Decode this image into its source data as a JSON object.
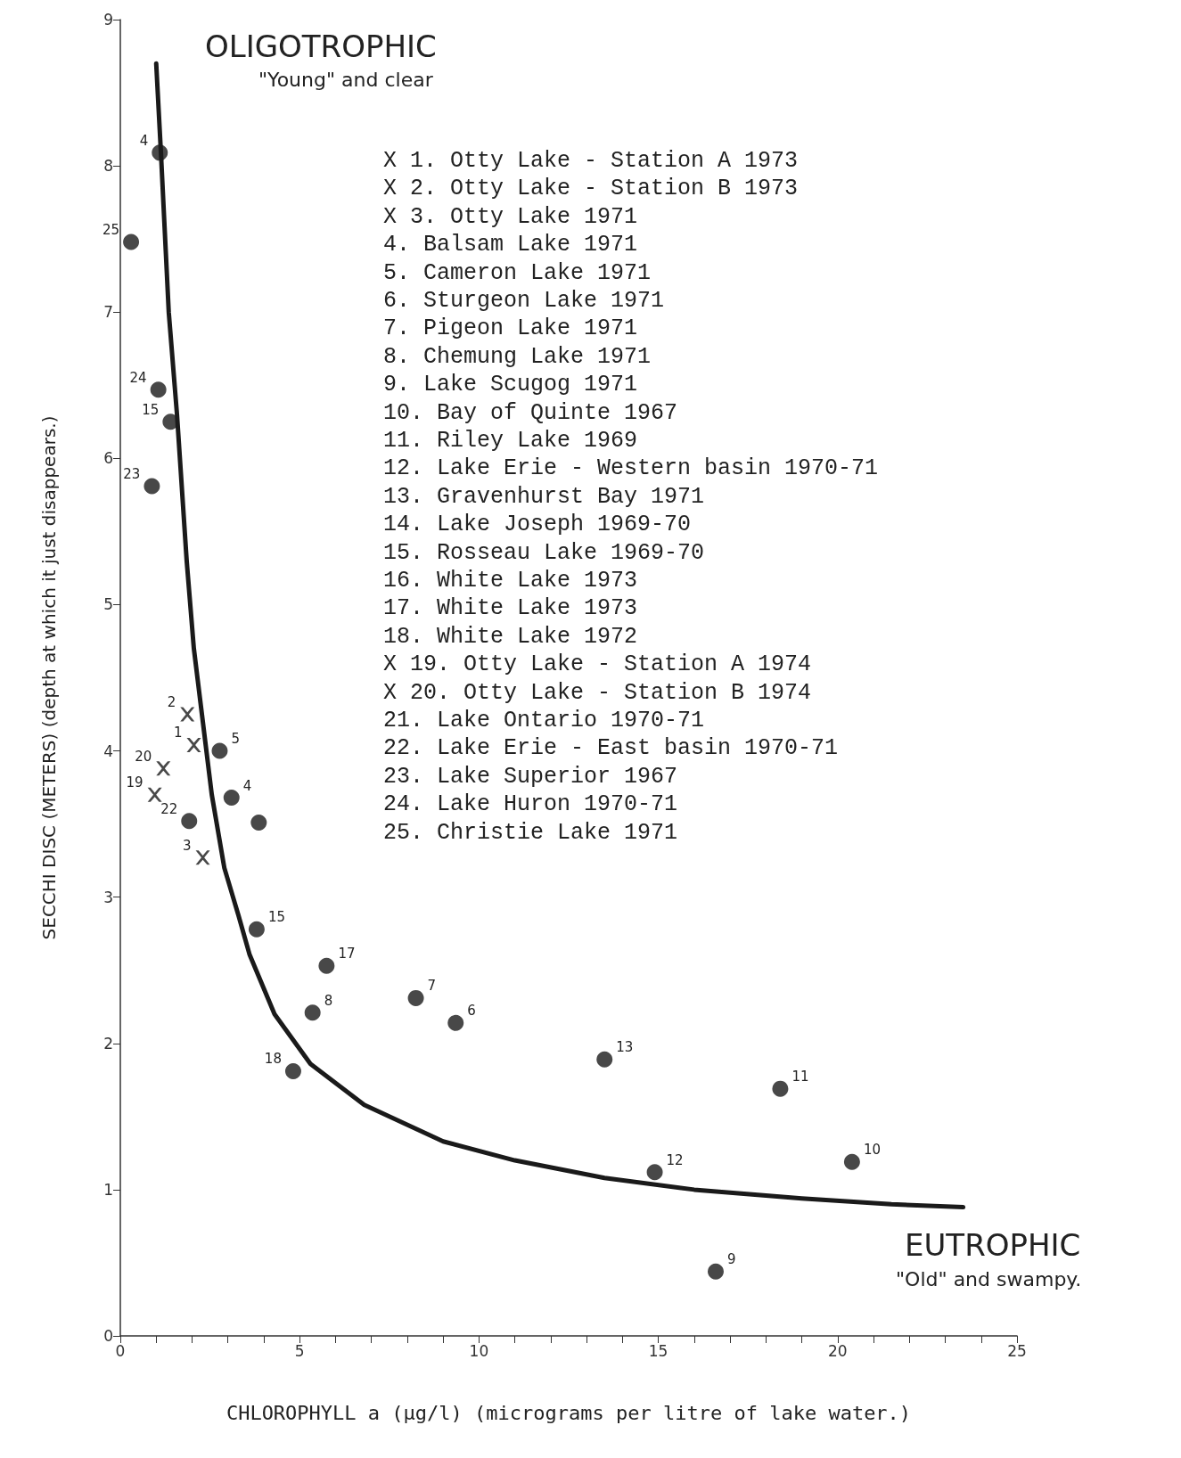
{
  "chart_data": {
    "type": "scatter",
    "xlabel": "CHLOROPHYLL a (µg/l) (micrograms per litre of lake water.)",
    "ylabel": "SECCHI DISC (METERS) (depth at which it just disappears.)",
    "xlim": [
      0,
      25
    ],
    "ylim": [
      0,
      9
    ],
    "xticks": [
      0,
      {
        "value": 1,
        "label": null
      },
      {
        "value": 2,
        "label": null
      },
      {
        "value": 3,
        "label": null
      },
      {
        "value": 4,
        "label": null
      },
      5,
      {
        "value": 6,
        "label": null
      },
      {
        "value": 7,
        "label": null
      },
      {
        "value": 8,
        "label": null
      },
      {
        "value": 9,
        "label": null
      },
      10,
      {
        "value": 11,
        "label": null
      },
      {
        "value": 12,
        "label": null
      },
      {
        "value": 13,
        "label": null
      },
      {
        "value": 14,
        "label": null
      },
      15,
      {
        "value": 16,
        "label": null
      },
      {
        "value": 17,
        "label": null
      },
      {
        "value": 18,
        "label": null
      },
      {
        "value": 19,
        "label": null
      },
      20,
      {
        "value": 21,
        "label": null
      },
      {
        "value": 22,
        "label": null
      },
      {
        "value": 23,
        "label": null
      },
      {
        "value": 24,
        "label": null
      },
      25
    ],
    "yticks": [
      0,
      1,
      2,
      3,
      4,
      5,
      6,
      7,
      8,
      9
    ],
    "series": [
      {
        "marker": "circle",
        "color": "#1a1a1a",
        "x": [
          1.1,
          0.3,
          1.06,
          1.4,
          0.88,
          2.77,
          3.1,
          3.86,
          1.92,
          3.8,
          5.75,
          5.36,
          4.82,
          8.24,
          9.35,
          13.5,
          18.4,
          20.4,
          14.9,
          16.6
        ],
        "values": [
          8.09,
          7.48,
          6.47,
          6.25,
          5.81,
          4.0,
          3.68,
          3.51,
          3.52,
          2.78,
          2.53,
          2.21,
          1.81,
          2.31,
          2.14,
          1.89,
          1.69,
          1.19,
          1.12,
          0.44
        ]
      },
      {
        "marker": "cross",
        "color": "#1a1a1a",
        "x": [
          1.87,
          2.05,
          1.2,
          0.96,
          2.3
        ],
        "values": [
          4.25,
          4.04,
          3.88,
          3.7,
          3.27
        ]
      },
      {
        "type": "line",
        "marker": "none",
        "line_style": "solid",
        "color": "#1a1a1a",
        "x": [
          1.0,
          1.13,
          1.35,
          1.58,
          1.85,
          2.05,
          2.25,
          2.55,
          2.9,
          3.3,
          3.6,
          4.3,
          5.3,
          6.8,
          9,
          11,
          13.5,
          16,
          19,
          21.5,
          23.5
        ],
        "values": [
          8.7,
          8.1,
          7.0,
          6.3,
          5.3,
          4.7,
          4.3,
          3.7,
          3.2,
          2.87,
          2.61,
          2.2,
          1.86,
          1.58,
          1.33,
          1.2,
          1.08,
          1.0,
          0.94,
          0.9,
          0.88
        ]
      }
    ],
    "annotations": [
      "OLIGOTROPHIC",
      "\"Young\" and clear",
      "EUTROPHIC",
      "\"Old\" and swampy.",
      "X 1. Otty Lake - Station A 1973",
      "X 2. Otty Lake - Station B 1973",
      "X 3. Otty Lake 1971",
      "4. Balsam Lake 1971",
      "5. Cameron Lake 1971",
      "6. Sturgeon Lake 1971",
      "7. Pigeon Lake 1971",
      "8. Chemung Lake 1971",
      "9. Lake Scugog 1971",
      "10. Bay of Quinte 1967",
      "11. Riley Lake 1969",
      "12. Lake Erie - Western basin 1970-71",
      "13. Gravenhurst Bay 1971",
      "14. Lake Joseph 1969-70",
      "15. Rosseau Lake 1969-70",
      "16. White Lake 1973",
      "17. White Lake 1973",
      "18. White Lake 1972",
      "X 19. Otty Lake - Station A 1974",
      "X 20. Otty Lake - Station B 1974",
      "21. Lake Ontario 1970-71",
      "22. Lake Erie - East basin 1970-71",
      "23. Lake Superior 1967",
      "24. Lake Huron 1970-71",
      "25. Christie Lake 1971",
      {
        "text": "4",
        "x": 1.1,
        "y": 8.09
      },
      {
        "text": "25",
        "x": 0.3,
        "y": 7.48
      },
      {
        "text": "24",
        "x": 1.06,
        "y": 6.47
      },
      {
        "text": "15",
        "x": 1.4,
        "y": 6.25
      },
      {
        "text": "23",
        "x": 0.88,
        "y": 5.81
      },
      {
        "text": "5",
        "x": 2.77,
        "y": 4.0
      },
      {
        "text": "4",
        "x": 3.1,
        "y": 3.68
      },
      {
        "text": "22",
        "x": 1.92,
        "y": 3.52
      },
      {
        "text": "15",
        "x": 3.8,
        "y": 2.78
      },
      {
        "text": "17",
        "x": 5.75,
        "y": 2.53
      },
      {
        "text": "8",
        "x": 5.36,
        "y": 2.21
      },
      {
        "text": "18",
        "x": 4.82,
        "y": 1.81
      },
      {
        "text": "7",
        "x": 8.24,
        "y": 2.31
      },
      {
        "text": "6",
        "x": 9.35,
        "y": 2.14
      },
      {
        "text": "13",
        "x": 13.5,
        "y": 1.89
      },
      {
        "text": "11",
        "x": 18.4,
        "y": 1.69
      },
      {
        "text": "10",
        "x": 20.4,
        "y": 1.19
      },
      {
        "text": "12",
        "x": 14.9,
        "y": 1.12
      },
      {
        "text": "9",
        "x": 16.6,
        "y": 0.44
      },
      {
        "text": "2",
        "x": 1.87,
        "y": 4.25
      },
      {
        "text": "1",
        "x": 2.05,
        "y": 4.04
      },
      {
        "text": "20",
        "x": 1.2,
        "y": 3.88
      },
      {
        "text": "19",
        "x": 0.96,
        "y": 3.7
      },
      {
        "text": "3",
        "x": 2.3,
        "y": 3.27
      }
    ]
  }
}
